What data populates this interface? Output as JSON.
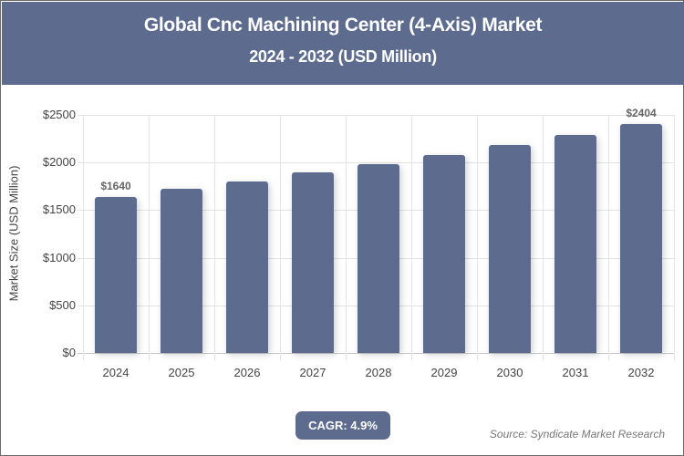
{
  "header": {
    "title": "Global Cnc Machining Center (4-Axis) Market",
    "subtitle": "2024 - 2032 (USD Million)"
  },
  "footer": {
    "cagr_label": "CAGR: 4.9%",
    "source": "Source: Syndicate Market Research"
  },
  "colors": {
    "header_bg": "#5c6b8e",
    "bar": "#5c6b8e",
    "cagr_bg": "#5c6b8e"
  },
  "chart_data": {
    "type": "bar",
    "title": "Global Cnc Machining Center (4-Axis) Market",
    "subtitle": "2024 - 2032 (USD Million)",
    "xlabel": "",
    "ylabel": "Market Size (USD Million)",
    "categories": [
      "2024",
      "2025",
      "2026",
      "2027",
      "2028",
      "2029",
      "2030",
      "2031",
      "2032"
    ],
    "values": [
      1640,
      1720,
      1804,
      1893,
      1985,
      2082,
      2184,
      2291,
      2404
    ],
    "data_labels": [
      {
        "index": 0,
        "text": "$1640"
      },
      {
        "index": 8,
        "text": "$2404"
      }
    ],
    "ylim": [
      0,
      2500
    ],
    "yticks": [
      0,
      500,
      1000,
      1500,
      2000,
      2500
    ],
    "ytick_labels": [
      "$0",
      "$500",
      "$1000",
      "$1500",
      "$2000",
      "$2500"
    ],
    "grid": true,
    "legend": null,
    "annotations": [
      "CAGR: 4.9%",
      "Source: Syndicate Market Research"
    ]
  }
}
